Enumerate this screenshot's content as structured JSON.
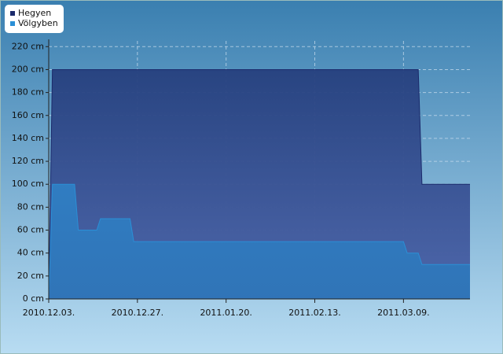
{
  "chart_data": {
    "type": "area",
    "x": [
      "2010.12.03.",
      "2010.12.04.",
      "2010.12.10.",
      "2010.12.11.",
      "2010.12.16.",
      "2010.12.17.",
      "2010.12.25.",
      "2010.12.26.",
      "2011.03.09.",
      "2011.03.10.",
      "2011.03.13.",
      "2011.03.14.",
      "2011.03.27."
    ],
    "series": [
      {
        "name": "Hegyen",
        "color": "#1b2a6b",
        "values": [
          0,
          200,
          200,
          200,
          200,
          200,
          200,
          200,
          200,
          200,
          200,
          100,
          100
        ]
      },
      {
        "name": "Völgyben",
        "color": "#2b8fd6",
        "values": [
          0,
          100,
          100,
          60,
          60,
          70,
          70,
          50,
          50,
          40,
          40,
          30,
          30
        ]
      }
    ],
    "xlim": [
      "2010.12.03.",
      "2011.03.27."
    ],
    "xticks": [
      "2010.12.03.",
      "2010.12.27.",
      "2011.01.20.",
      "2011.02.13.",
      "2011.03.09."
    ],
    "ylim": [
      0,
      225
    ],
    "yticks": [
      {
        "value": 0,
        "label": "0 cm"
      },
      {
        "value": 20,
        "label": "20 cm"
      },
      {
        "value": 40,
        "label": "40 cm"
      },
      {
        "value": 60,
        "label": "60 cm"
      },
      {
        "value": 80,
        "label": "80 cm"
      },
      {
        "value": 100,
        "label": "100 cm"
      },
      {
        "value": 120,
        "label": "120 cm"
      },
      {
        "value": 140,
        "label": "140 cm"
      },
      {
        "value": 160,
        "label": "160 cm"
      },
      {
        "value": 180,
        "label": "180 cm"
      },
      {
        "value": 200,
        "label": "200 cm"
      },
      {
        "value": 220,
        "label": "220 cm"
      }
    ],
    "grid": true,
    "legend": "top-left"
  }
}
